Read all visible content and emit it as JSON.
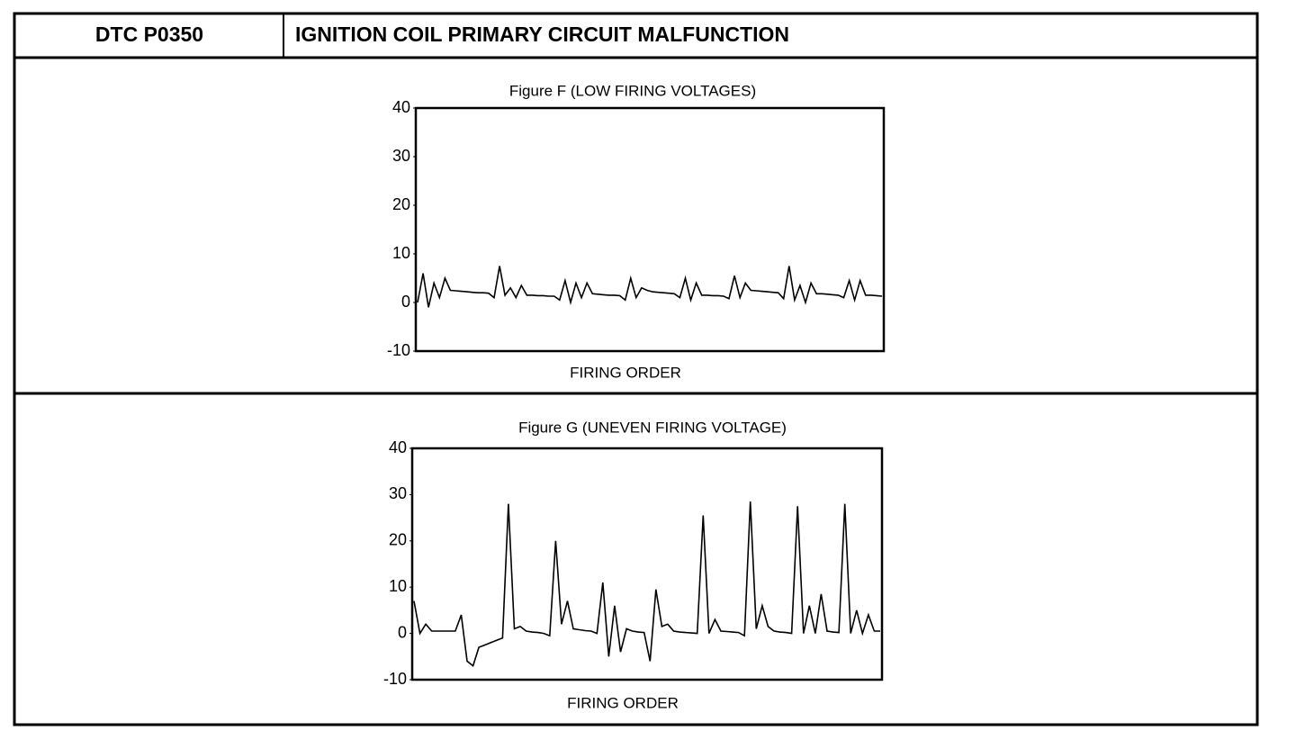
{
  "header": {
    "code": "DTC P0350",
    "title": "IGNITION COIL PRIMARY CIRCUIT MALFUNCTION"
  },
  "chart_data": [
    {
      "type": "line",
      "title": "Figure F (LOW FIRING VOLTAGES)",
      "x_label": "FIRING ORDER",
      "ylim": [
        -10,
        40
      ],
      "yticks": [
        -10,
        0,
        10,
        20,
        30,
        40
      ],
      "color": "#000000",
      "values": [
        0,
        6,
        -1,
        4,
        1,
        5,
        2.5,
        2.4,
        2.3,
        2.2,
        2.1,
        2.0,
        2.0,
        1.9,
        1.0,
        7.5,
        1.5,
        3,
        1,
        3.5,
        1.5,
        1.5,
        1.4,
        1.4,
        1.3,
        1.3,
        0.5,
        4.5,
        0,
        4,
        1,
        4,
        1.8,
        1.7,
        1.6,
        1.5,
        1.5,
        1.4,
        0.5,
        5,
        1,
        3,
        2.5,
        2.2,
        2.1,
        2.0,
        1.9,
        1.8,
        1.0,
        5,
        0.5,
        4,
        1.5,
        1.5,
        1.4,
        1.4,
        1.3,
        0.8,
        5.5,
        1,
        4,
        2.5,
        2.4,
        2.3,
        2.2,
        2.1,
        2.0,
        0.8,
        7.5,
        0.5,
        3.5,
        0,
        4,
        1.8,
        1.8,
        1.7,
        1.6,
        1.5,
        1.0,
        4.5,
        0.5,
        4.5,
        1.5,
        1.5,
        1.4,
        1.3
      ]
    },
    {
      "type": "line",
      "title": "Figure G (UNEVEN FIRING VOLTAGE)",
      "x_label": "FIRING ORDER",
      "ylim": [
        -10,
        40
      ],
      "yticks": [
        -10,
        0,
        10,
        20,
        30,
        40
      ],
      "color": "#000000",
      "values": [
        7,
        0,
        2,
        0.5,
        0.5,
        0.5,
        0.5,
        0.5,
        4,
        -6,
        -7,
        -3,
        -2.5,
        -2,
        -1.5,
        -1,
        28,
        1,
        1.5,
        0.5,
        0.3,
        0.2,
        0,
        -0.5,
        20,
        2,
        7,
        1,
        0.8,
        0.6,
        0.5,
        0,
        11,
        -5,
        6,
        -4,
        1,
        0.5,
        0.3,
        0.2,
        -6,
        9.5,
        1.5,
        2,
        0.5,
        0.3,
        0.2,
        0.1,
        0,
        25.5,
        0,
        3,
        0.5,
        0.4,
        0.3,
        0.2,
        -0.5,
        28.5,
        1,
        6,
        1.5,
        0.5,
        0.3,
        0.2,
        0,
        27.5,
        0,
        6,
        0,
        8.5,
        0.5,
        0.3,
        0.2,
        28,
        0,
        5,
        0,
        4,
        0.5,
        0.5
      ]
    }
  ]
}
